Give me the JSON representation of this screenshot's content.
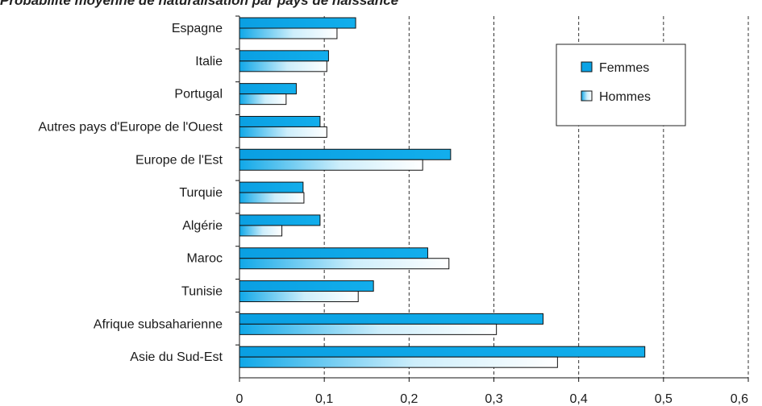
{
  "chart_data": {
    "type": "bar",
    "orientation": "horizontal",
    "title": "Probabilité moyenne de naturalisation par pays de naissance",
    "categories": [
      "Espagne",
      "Italie",
      "Portugal",
      "Autres pays d'Europe de l'Ouest",
      "Europe de l'Est",
      "Turquie",
      "Algérie",
      "Maroc",
      "Tunisie",
      "Afrique subsaharienne",
      "Asie du Sud-Est"
    ],
    "series": [
      {
        "name": "Femmes",
        "values": [
          0.137,
          0.105,
          0.067,
          0.095,
          0.249,
          0.075,
          0.095,
          0.222,
          0.158,
          0.358,
          0.478
        ],
        "color": "#0aa3e6"
      },
      {
        "name": "Hommes",
        "values": [
          0.115,
          0.103,
          0.055,
          0.103,
          0.216,
          0.076,
          0.05,
          0.247,
          0.14,
          0.303,
          0.375
        ],
        "color": "#4dbdf0"
      }
    ],
    "xlim": [
      0,
      0.6
    ],
    "x_ticks": [
      "0",
      "0,1",
      "0,2",
      "0,3",
      "0,4",
      "0,5",
      "0,6"
    ],
    "grid": "vertical dashed",
    "legend": {
      "placement": "top-right",
      "entries": [
        "Femmes",
        "Hommes"
      ]
    }
  }
}
